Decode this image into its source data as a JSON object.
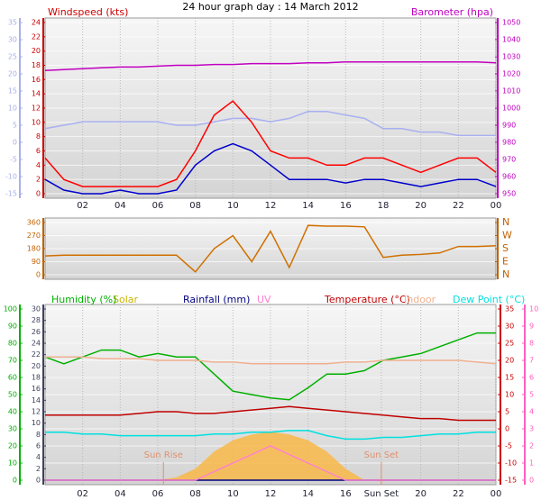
{
  "title": "24 hour graph day : 14 March 2012",
  "chart_data": [
    {
      "type": "line",
      "y_label": "Windspeed (kts)",
      "y2_label": "Barometer (hpa)",
      "x": [
        0,
        1,
        2,
        3,
        4,
        5,
        6,
        7,
        8,
        9,
        10,
        11,
        12,
        13,
        14,
        15,
        16,
        17,
        18,
        19,
        20,
        21,
        22,
        23,
        24
      ],
      "xlim": [
        0,
        24
      ],
      "xticks": [
        {
          "value": 2,
          "label": "02"
        },
        {
          "value": 4,
          "label": "04"
        },
        {
          "value": 6,
          "label": "06"
        },
        {
          "value": 8,
          "label": "08"
        },
        10,
        12,
        14,
        16,
        18,
        20,
        22,
        {
          "value": 24,
          "label": "00"
        }
      ],
      "ylim": [
        0,
        24
      ],
      "yticks": [
        0,
        2,
        4,
        6,
        8,
        10,
        12,
        14,
        16,
        18,
        20,
        22,
        24
      ],
      "y2lim": [
        950,
        1050
      ],
      "y2ticks": [
        950,
        960,
        970,
        980,
        990,
        1000,
        1010,
        1020,
        1030,
        1040,
        1050
      ],
      "y3lim": [
        -15,
        35
      ],
      "y3ticks": [
        -15,
        -10,
        -5,
        0,
        5,
        10,
        15,
        20,
        25,
        30,
        35
      ],
      "axis_colors": {
        "y": "#cc0000",
        "y2": "#c000c0",
        "y3": "#a8b0e8"
      },
      "grid": true,
      "series": [
        {
          "color": "#a8b0f0",
          "axis": "y3",
          "values": [
            4,
            5,
            6,
            6,
            6,
            6,
            6,
            5,
            5,
            6,
            7,
            7,
            6,
            7,
            9,
            9,
            8,
            7,
            4,
            4,
            3,
            3,
            2,
            2,
            2
          ]
        },
        {
          "color": "#c000c0",
          "axis": "y2",
          "values": [
            1022,
            1022.5,
            1023,
            1023.5,
            1024,
            1024,
            1024.5,
            1025,
            1025,
            1025.5,
            1025.5,
            1026,
            1026,
            1026,
            1026.5,
            1026.5,
            1027,
            1027,
            1027,
            1027,
            1027,
            1027,
            1027,
            1027,
            1026.5
          ]
        },
        {
          "color": "#ff0000",
          "axis": "y",
          "values": [
            5,
            2,
            1,
            1,
            1,
            1,
            1,
            2,
            6,
            11,
            13,
            10,
            6,
            5,
            5,
            4,
            4,
            5,
            5,
            4,
            3,
            4,
            5,
            5,
            3
          ]
        },
        {
          "color": "#0000cc",
          "axis": "y",
          "values": [
            2,
            0.5,
            0,
            0,
            0.5,
            0,
            0,
            0.5,
            4,
            6,
            7,
            6,
            4,
            2,
            2,
            2,
            1.5,
            2,
            2,
            1.5,
            1,
            1.5,
            2,
            2,
            1
          ]
        }
      ]
    },
    {
      "type": "line",
      "x": [
        0,
        1,
        2,
        3,
        4,
        5,
        6,
        7,
        8,
        9,
        10,
        11,
        12,
        13,
        14,
        15,
        16,
        17,
        18,
        19,
        20,
        21,
        22,
        23,
        24
      ],
      "xlim": [
        0,
        24
      ],
      "ylim": [
        0,
        360
      ],
      "yticks": [
        0,
        90,
        180,
        270,
        360
      ],
      "y2lim": [
        0,
        360
      ],
      "y2ticks": [
        {
          "value": 0,
          "label": "N"
        },
        {
          "value": 90,
          "label": "E"
        },
        {
          "value": 180,
          "label": "S"
        },
        {
          "value": 270,
          "label": "W"
        },
        {
          "value": 360,
          "label": "N"
        }
      ],
      "axis_colors": {
        "y": "#c06000",
        "y2": "#c06000"
      },
      "grid": true,
      "series": [
        {
          "color": "#d07000",
          "axis": "y",
          "values": [
            130,
            135,
            135,
            135,
            135,
            135,
            135,
            135,
            20,
            180,
            270,
            90,
            300,
            50,
            340,
            335,
            335,
            330,
            120,
            135,
            140,
            150,
            195,
            195,
            200
          ]
        }
      ]
    },
    {
      "type": "line",
      "x": [
        0,
        1,
        2,
        3,
        4,
        5,
        6,
        7,
        8,
        9,
        10,
        11,
        12,
        13,
        14,
        15,
        16,
        17,
        18,
        19,
        20,
        21,
        22,
        23,
        24
      ],
      "xlim": [
        0,
        24
      ],
      "xticks": [
        {
          "value": 2,
          "label": "02"
        },
        {
          "value": 4,
          "label": "04"
        },
        {
          "value": 6,
          "label": "06"
        },
        {
          "value": 8,
          "label": "08"
        },
        10,
        12,
        14,
        16,
        {
          "value": 17.9,
          "label": "Sun Set"
        },
        20,
        22,
        {
          "value": 24,
          "label": "00"
        }
      ],
      "ylim": [
        0,
        100
      ],
      "yticks": [
        0,
        10,
        20,
        30,
        40,
        50,
        60,
        70,
        80,
        90,
        100
      ],
      "y3lim": [
        0,
        30
      ],
      "y3ticks": [
        0,
        2,
        4,
        6,
        8,
        10,
        12,
        14,
        16,
        18,
        20,
        22,
        24,
        26,
        28,
        30
      ],
      "y2lim": [
        -15,
        35
      ],
      "y2ticks": [
        -15,
        -10,
        -5,
        0,
        5,
        10,
        15,
        20,
        25,
        30,
        35
      ],
      "y4lim": [
        0,
        10
      ],
      "y4ticks": [
        0,
        1,
        2,
        3,
        4,
        5,
        6,
        7,
        8,
        9,
        10
      ],
      "axis_colors": {
        "y": "#00b000",
        "y2": "#cc0000",
        "y3": "#404060",
        "y4": "#ff60c0"
      },
      "grid": true,
      "annotations": [
        {
          "text": "Sun Rise",
          "x": 6.3
        },
        {
          "text": "Sun Set",
          "x": 17.9
        }
      ],
      "series": [
        {
          "name": "Humidity (%)",
          "color": "#00b000",
          "axis": "y",
          "values": [
            72,
            68,
            72,
            76,
            76,
            72,
            74,
            72,
            72,
            62,
            52,
            50,
            48,
            47,
            54,
            62,
            62,
            64,
            70,
            72,
            74,
            78,
            82,
            86,
            86
          ]
        },
        {
          "name": "Solar",
          "color": "#c8b400",
          "fill_color": "#f8b848",
          "area": true,
          "axis": "y3",
          "values": [
            0,
            0,
            0,
            0,
            0,
            0,
            0,
            0.5,
            2,
            5,
            7,
            8,
            8.5,
            8,
            7,
            5,
            2,
            0,
            0,
            0,
            0,
            0,
            0,
            0,
            0
          ]
        },
        {
          "name": "Rainfall (mm)",
          "color": "#000080",
          "axis": "y3",
          "values": [
            0,
            0,
            0,
            0,
            0,
            0,
            0,
            0,
            0,
            0,
            0,
            0,
            0,
            0,
            0,
            0,
            0,
            0,
            0,
            0,
            0,
            0,
            0,
            0,
            0
          ]
        },
        {
          "name": "UV",
          "color": "#ff80d0",
          "axis": "y4",
          "values": [
            0,
            0,
            0,
            0,
            0,
            0,
            0,
            0,
            0,
            0.5,
            1,
            1.5,
            2,
            1.5,
            1,
            0.5,
            0,
            0,
            0,
            0,
            0,
            0,
            0,
            0,
            0
          ]
        },
        {
          "name": "Temperature (°C)",
          "color": "#c00000",
          "axis": "y2",
          "values": [
            4,
            4,
            4,
            4,
            4,
            4.5,
            5,
            5,
            4.5,
            4.5,
            5,
            5.5,
            6,
            6.5,
            6,
            5.5,
            5,
            4.5,
            4,
            3.5,
            3,
            3,
            2.5,
            2.5,
            2.5
          ]
        },
        {
          "name": "Indoor",
          "color": "#f0b090",
          "axis": "y2",
          "values": [
            21,
            21,
            21,
            20.5,
            20.5,
            20.5,
            20,
            20,
            20,
            19.5,
            19.5,
            19,
            19,
            19,
            19,
            19,
            19.5,
            19.5,
            20,
            20,
            20,
            20,
            20,
            19.5,
            19
          ]
        },
        {
          "name": "Dew Point (°C)",
          "color": "#00e0e0",
          "axis": "y2",
          "values": [
            -1,
            -1,
            -1.5,
            -1.5,
            -2,
            -2,
            -2,
            -2,
            -2,
            -1.5,
            -1.5,
            -1,
            -1,
            -0.5,
            -0.5,
            -2,
            -3,
            -3,
            -2.5,
            -2.5,
            -2,
            -1.5,
            -1.5,
            -1,
            -1
          ]
        }
      ]
    }
  ]
}
